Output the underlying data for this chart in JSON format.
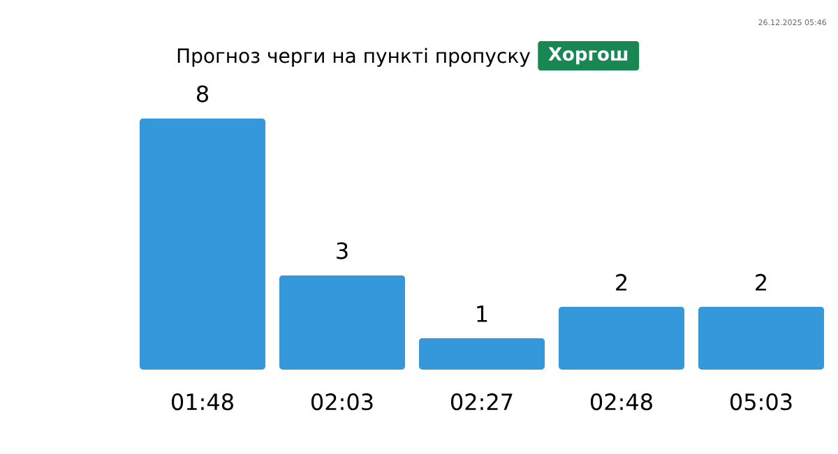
{
  "chart_data": {
    "type": "bar",
    "title": "Прогноз черги на пункті пропуску",
    "subtitle": "Хоргош",
    "categories": [
      "01:48",
      "02:03",
      "02:27",
      "02:48",
      "05:03"
    ],
    "values": [
      8,
      3,
      1,
      2,
      2
    ],
    "color": "#3598db",
    "ylim": [
      0,
      8
    ],
    "data_labels": true,
    "annotations": [
      "26.12.2025 05:46"
    ]
  }
}
